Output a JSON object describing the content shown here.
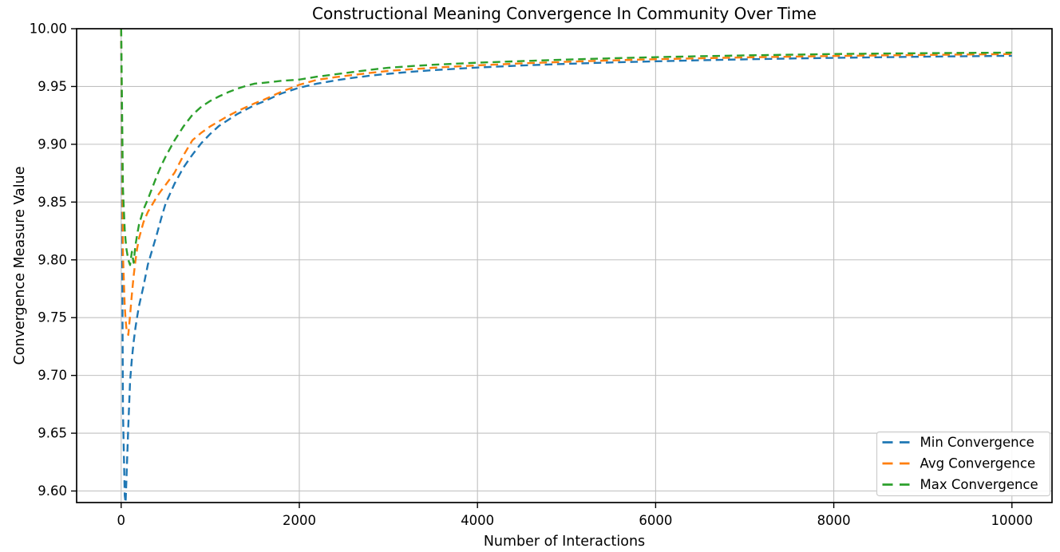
{
  "chart_data": {
    "type": "line",
    "title": "Constructional Meaning Convergence In Community Over Time",
    "xlabel": "Number of Interactions",
    "ylabel": "Convergence Measure Value",
    "xlim": [
      -500,
      10450
    ],
    "ylim": [
      9.59,
      10.0
    ],
    "xticks": [
      0,
      2000,
      4000,
      6000,
      8000,
      10000
    ],
    "yticks": [
      9.6,
      9.65,
      9.7,
      9.75,
      9.8,
      9.85,
      9.9,
      9.95,
      10.0
    ],
    "grid": true,
    "line_style": "dashed",
    "legend_position": "lower right",
    "colors": {
      "min": "#1f77b4",
      "avg": "#ff7f0e",
      "max": "#2ca02c",
      "grid": "#c0c0c0",
      "spine": "#000000",
      "legend_border": "#cccccc"
    },
    "x": [
      0,
      20,
      40,
      50,
      60,
      80,
      100,
      120,
      140,
      160,
      180,
      200,
      250,
      300,
      350,
      400,
      450,
      500,
      600,
      700,
      800,
      900,
      1000,
      1100,
      1200,
      1300,
      1400,
      1500,
      1600,
      1800,
      2000,
      2200,
      2400,
      2600,
      2800,
      3000,
      3250,
      3500,
      3750,
      4000,
      4500,
      5000,
      5500,
      6000,
      6500,
      7000,
      7500,
      8000,
      8500,
      9000,
      9500,
      10000
    ],
    "series": [
      {
        "name": "Min Convergence",
        "color": "#1f77b4",
        "values": [
          10.0,
          9.67,
          9.596,
          9.59,
          9.612,
          9.656,
          9.695,
          9.714,
          9.729,
          9.741,
          9.751,
          9.76,
          9.777,
          9.796,
          9.809,
          9.822,
          9.836,
          9.849,
          9.866,
          9.88,
          9.891,
          9.901,
          9.909,
          9.916,
          9.921,
          9.926,
          9.93,
          9.934,
          9.937,
          9.944,
          9.949,
          9.9525,
          9.9552,
          9.9575,
          9.9594,
          9.961,
          9.9627,
          9.9641,
          9.9653,
          9.9664,
          9.9682,
          9.9696,
          9.9708,
          9.9718,
          9.9727,
          9.9735,
          9.9742,
          9.9748,
          9.9753,
          9.9758,
          9.9762,
          9.9766
        ]
      },
      {
        "name": "Avg Convergence",
        "color": "#ff7f0e",
        "values": [
          10.0,
          9.805,
          9.76,
          9.748,
          9.74,
          9.735,
          9.752,
          9.77,
          9.786,
          9.799,
          9.81,
          9.8185,
          9.8325,
          9.8415,
          9.848,
          9.8545,
          9.86,
          9.865,
          9.8755,
          9.8905,
          9.9035,
          9.91,
          9.9155,
          9.92,
          9.9245,
          9.9285,
          9.932,
          9.9355,
          9.9385,
          9.9455,
          9.9515,
          9.9558,
          9.958,
          9.96,
          9.9618,
          9.9635,
          9.9649,
          9.9662,
          9.9673,
          9.9683,
          9.97,
          9.9714,
          9.9726,
          9.9736,
          9.9744,
          9.9752,
          9.9758,
          9.9764,
          9.9769,
          9.9773,
          9.9777,
          9.9781
        ]
      },
      {
        "name": "Max Convergence",
        "color": "#2ca02c",
        "values": [
          10.0,
          9.862,
          9.826,
          9.8165,
          9.809,
          9.8,
          9.7955,
          9.807,
          9.7975,
          9.8125,
          9.822,
          9.8305,
          9.8435,
          9.8525,
          9.8625,
          9.8725,
          9.8815,
          9.8895,
          9.9035,
          9.9155,
          9.9255,
          9.9325,
          9.9375,
          9.9415,
          9.945,
          9.948,
          9.9505,
          9.9525,
          9.9532,
          9.9549,
          9.956,
          9.9585,
          9.9605,
          9.9625,
          9.9645,
          9.9662,
          9.9676,
          9.9688,
          9.9697,
          9.9706,
          9.972,
          9.9733,
          9.9744,
          9.9754,
          9.9762,
          9.9769,
          9.9775,
          9.9781,
          9.9785,
          9.9788,
          9.9791,
          9.9793
        ]
      }
    ],
    "legend_entries": [
      "Min Convergence",
      "Avg Convergence",
      "Max Convergence"
    ]
  }
}
